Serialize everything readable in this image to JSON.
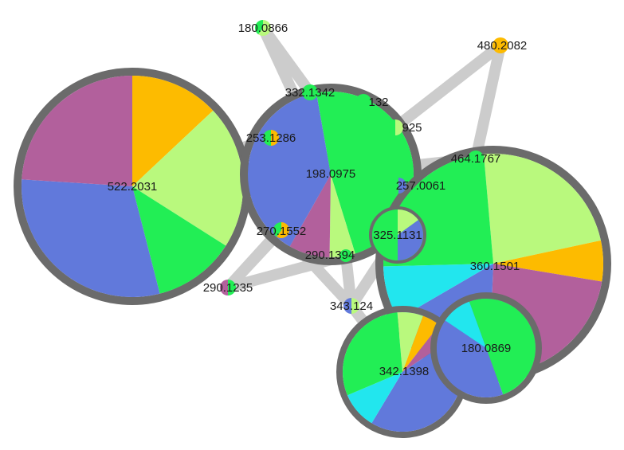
{
  "colors": {
    "edge": "#cccccc",
    "ring": "#6b6b6b",
    "segments": {
      "yellow": "#fdbb00",
      "light_green": "#b9f97d",
      "green": "#22ee55",
      "blue": "#6179db",
      "magenta": "#b2609c",
      "cyan": "#22e6ee"
    }
  },
  "nodes": [
    {
      "id": "n522",
      "label": "522.2031",
      "slices": [
        [
          "yellow",
          0.13
        ],
        [
          "light_green",
          0.21
        ],
        [
          "green",
          0.12
        ],
        [
          "blue",
          0.3
        ],
        [
          "magenta",
          0.24
        ]
      ]
    },
    {
      "id": "n198",
      "label": "198.0975",
      "slices": [
        [
          "green",
          0.48
        ],
        [
          "light_green",
          0.05
        ],
        [
          "magenta",
          0.08
        ],
        [
          "blue",
          0.39
        ]
      ]
    },
    {
      "id": "n360",
      "label": "360.1501",
      "slices": [
        [
          "light_green",
          0.23
        ],
        [
          "yellow",
          0.06
        ],
        [
          "magenta",
          0.23
        ],
        [
          "blue",
          0.16
        ],
        [
          "cyan",
          0.08
        ],
        [
          "green",
          0.24
        ]
      ]
    },
    {
      "id": "n342",
      "label": "342.1398",
      "slices": [
        [
          "light_green",
          0.07
        ],
        [
          "yellow",
          0.05
        ],
        [
          "magenta",
          0.05
        ],
        [
          "blue",
          0.43
        ],
        [
          "cyan",
          0.1
        ],
        [
          "green",
          0.3
        ]
      ]
    },
    {
      "id": "n180b",
      "label": "180.0869",
      "slices": [
        [
          "green",
          0.5
        ],
        [
          "blue",
          0.4
        ],
        [
          "cyan",
          0.1
        ]
      ]
    },
    {
      "id": "n325",
      "label": "325.1131",
      "slices": [
        [
          "light_green",
          0.15
        ],
        [
          "blue",
          0.35
        ],
        [
          "green",
          0.5
        ]
      ]
    },
    {
      "id": "n180a",
      "label": "180.0866",
      "slices": [
        [
          "light_green",
          0.6
        ],
        [
          "green",
          0.4
        ]
      ]
    },
    {
      "id": "n480",
      "label": "480.2082",
      "slices": [
        [
          "yellow",
          1.0
        ]
      ]
    },
    {
      "id": "n332",
      "label": "332.1342",
      "slices": [
        [
          "green",
          1.0
        ]
      ]
    },
    {
      "id": "n132",
      "label": "132",
      "slices": [
        [
          "green",
          1.0
        ]
      ]
    },
    {
      "id": "n925",
      "label": "925",
      "slices": [
        [
          "light_green",
          0.5
        ],
        [
          "green",
          0.5
        ]
      ]
    },
    {
      "id": "n253",
      "label": "253.1286",
      "slices": [
        [
          "yellow",
          0.5
        ],
        [
          "green",
          0.5
        ]
      ]
    },
    {
      "id": "n464",
      "label": "464.1767",
      "slices": [
        [
          "green",
          1.0
        ]
      ]
    },
    {
      "id": "n257",
      "label": "257.0061",
      "slices": [
        [
          "blue",
          0.5
        ],
        [
          "green",
          0.5
        ]
      ]
    },
    {
      "id": "n270",
      "label": "270.1552",
      "slices": [
        [
          "yellow",
          0.6
        ],
        [
          "green",
          0.4
        ]
      ]
    },
    {
      "id": "n290",
      "label": "290.1235",
      "slices": [
        [
          "green",
          0.5
        ],
        [
          "magenta",
          0.5
        ]
      ]
    },
    {
      "id": "n343",
      "label": "343.124",
      "slices": [
        [
          "light_green",
          0.5
        ],
        [
          "blue",
          0.5
        ]
      ]
    },
    {
      "id": "n394",
      "label": "290.1394",
      "slices": [
        [
          "green",
          1.0
        ]
      ]
    }
  ],
  "edges": [
    [
      "n180a",
      "n332"
    ],
    [
      "n180a",
      "n198"
    ],
    [
      "n480",
      "n464"
    ],
    [
      "n480",
      "n925"
    ],
    [
      "n522",
      "n253"
    ],
    [
      "n522",
      "n198"
    ],
    [
      "n198",
      "n464"
    ],
    [
      "n198",
      "n360"
    ],
    [
      "n290",
      "n198"
    ],
    [
      "n290",
      "n394"
    ],
    [
      "n270",
      "n343"
    ],
    [
      "n394",
      "n343"
    ],
    [
      "n343",
      "n342"
    ],
    [
      "n325",
      "n360"
    ],
    [
      "n198",
      "n394"
    ],
    [
      "n394",
      "n325"
    ],
    [
      "n270",
      "n325"
    ],
    [
      "n343",
      "n325"
    ],
    [
      "n290",
      "n270"
    ]
  ]
}
